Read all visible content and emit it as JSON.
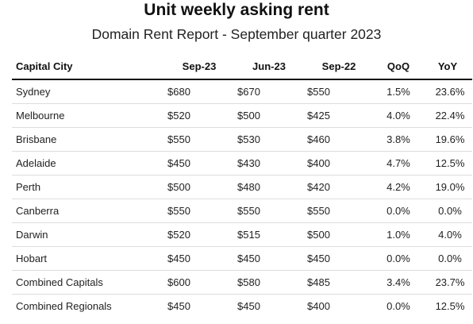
{
  "chart_data": {
    "type": "table",
    "title": "Unit weekly asking rent",
    "subtitle": "Domain Rent Report - September quarter 2023",
    "columns": [
      "Capital City",
      "Sep-23",
      "Jun-23",
      "Sep-22",
      "QoQ",
      "YoY"
    ],
    "rows": [
      [
        "Sydney",
        "$680",
        "$670",
        "$550",
        "1.5%",
        "23.6%"
      ],
      [
        "Melbourne",
        "$520",
        "$500",
        "$425",
        "4.0%",
        "22.4%"
      ],
      [
        "Brisbane",
        "$550",
        "$530",
        "$460",
        "3.8%",
        "19.6%"
      ],
      [
        "Adelaide",
        "$450",
        "$430",
        "$400",
        "4.7%",
        "12.5%"
      ],
      [
        "Perth",
        "$500",
        "$480",
        "$420",
        "4.2%",
        "19.0%"
      ],
      [
        "Canberra",
        "$550",
        "$550",
        "$550",
        "0.0%",
        "0.0%"
      ],
      [
        "Darwin",
        "$520",
        "$515",
        "$500",
        "1.0%",
        "4.0%"
      ],
      [
        "Hobart",
        "$450",
        "$450",
        "$450",
        "0.0%",
        "0.0%"
      ],
      [
        "Combined Capitals",
        "$600",
        "$580",
        "$485",
        "3.4%",
        "23.7%"
      ],
      [
        "Combined Regionals",
        "$450",
        "$450",
        "$400",
        "0.0%",
        "12.5%"
      ]
    ]
  }
}
